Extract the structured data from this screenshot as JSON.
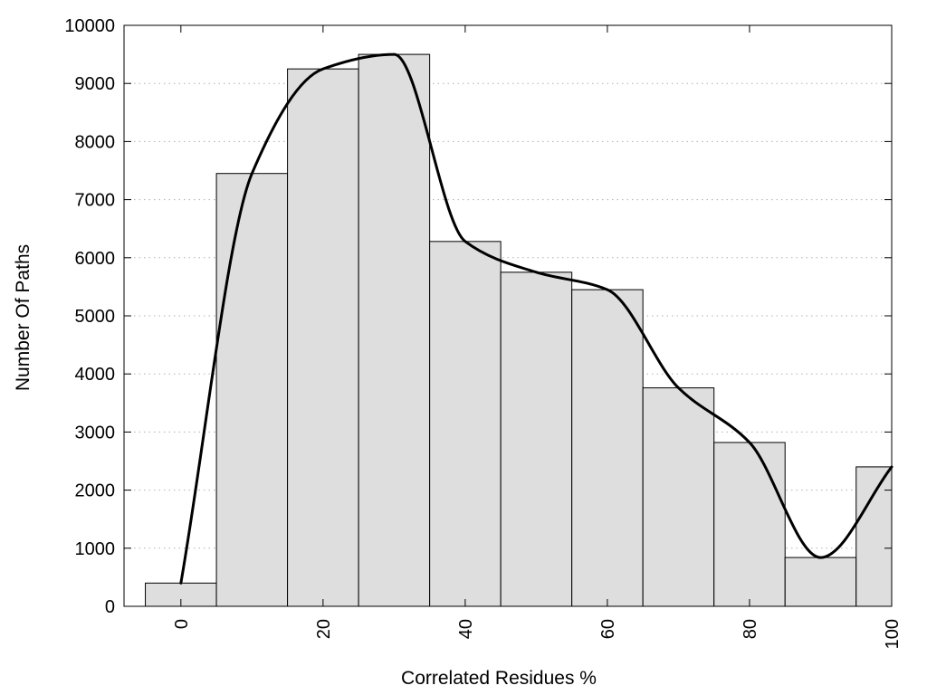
{
  "chart_data": {
    "type": "bar",
    "subtype": "histogram-with-smoothed-curve",
    "title": "",
    "xlabel": "Correlated Residues %",
    "ylabel": "Number Of Paths",
    "xlim": [
      -8,
      100
    ],
    "ylim": [
      0,
      10000
    ],
    "bin_width": 10,
    "x_ticks": [
      0,
      20,
      40,
      60,
      80,
      100
    ],
    "y_ticks": [
      0,
      1000,
      2000,
      3000,
      4000,
      5000,
      6000,
      7000,
      8000,
      9000,
      10000
    ],
    "grid": "horizontal-dotted",
    "legend": "none",
    "bars": [
      {
        "x": 0,
        "value": 400
      },
      {
        "x": 10,
        "value": 7450
      },
      {
        "x": 20,
        "value": 9250
      },
      {
        "x": 30,
        "value": 9500
      },
      {
        "x": 40,
        "value": 6280
      },
      {
        "x": 50,
        "value": 5750
      },
      {
        "x": 60,
        "value": 5450
      },
      {
        "x": 70,
        "value": 3760
      },
      {
        "x": 80,
        "value": 2820
      },
      {
        "x": 90,
        "value": 840
      },
      {
        "x": 100,
        "value": 2400
      }
    ],
    "curve": [
      {
        "x": 0,
        "y": 400
      },
      {
        "x": 10,
        "y": 7450
      },
      {
        "x": 20,
        "y": 9250
      },
      {
        "x": 30,
        "y": 9500
      },
      {
        "x": 40,
        "y": 6280
      },
      {
        "x": 50,
        "y": 5750
      },
      {
        "x": 60,
        "y": 5450
      },
      {
        "x": 70,
        "y": 3760
      },
      {
        "x": 80,
        "y": 2820
      },
      {
        "x": 90,
        "y": 840
      },
      {
        "x": 100,
        "y": 2400
      }
    ],
    "colors": {
      "bar_fill": "#dedede",
      "bar_stroke": "#000000",
      "curve": "#000000",
      "grid": "#b0b0b0"
    }
  }
}
